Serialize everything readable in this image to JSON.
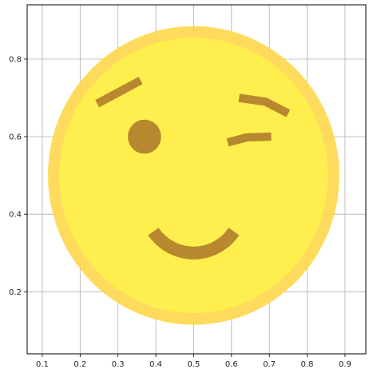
{
  "chart_data": {
    "type": "scatter",
    "title": "",
    "xlabel": "",
    "ylabel": "",
    "xlim": [
      0.06,
      0.955
    ],
    "ylim": [
      0.04,
      0.94
    ],
    "grid": true,
    "xticks": [
      "0.1",
      "0.2",
      "0.3",
      "0.4",
      "0.5",
      "0.6",
      "0.7",
      "0.8",
      "0.9"
    ],
    "yticks": [
      "0.2",
      "0.4",
      "0.6",
      "0.8"
    ],
    "xtick_values": [
      0.1,
      0.2,
      0.3,
      0.4,
      0.5,
      0.6,
      0.7,
      0.8,
      0.9
    ],
    "ytick_values": [
      0.2,
      0.4,
      0.6,
      0.8
    ],
    "colors": {
      "face_fill": "#FFF04D",
      "face_ring": "#FFD84F",
      "feature": "#B8882E",
      "grid": "#b0b0b0",
      "axes": "#000000"
    },
    "shapes": [
      {
        "name": "face",
        "kind": "circle",
        "cx": 0.5,
        "cy": 0.5,
        "r": 0.385,
        "ring": 0.03
      },
      {
        "name": "left-eye",
        "kind": "dot",
        "cx": 0.37,
        "cy": 0.6,
        "r": 0.044
      },
      {
        "name": "left-eyebrow",
        "kind": "line",
        "points": [
          [
            0.245,
            0.685
          ],
          [
            0.36,
            0.745
          ]
        ]
      },
      {
        "name": "right-eyebrow",
        "kind": "polyline",
        "points": [
          [
            0.62,
            0.7
          ],
          [
            0.69,
            0.69
          ],
          [
            0.75,
            0.66
          ]
        ]
      },
      {
        "name": "right-eye-wink",
        "kind": "polyline",
        "points": [
          [
            0.59,
            0.585
          ],
          [
            0.64,
            0.598
          ],
          [
            0.705,
            0.6
          ]
        ]
      },
      {
        "name": "mouth",
        "kind": "arc",
        "cx": 0.5,
        "cy": 0.43,
        "r": 0.13,
        "start_deg": 215,
        "end_deg": 325
      }
    ]
  }
}
